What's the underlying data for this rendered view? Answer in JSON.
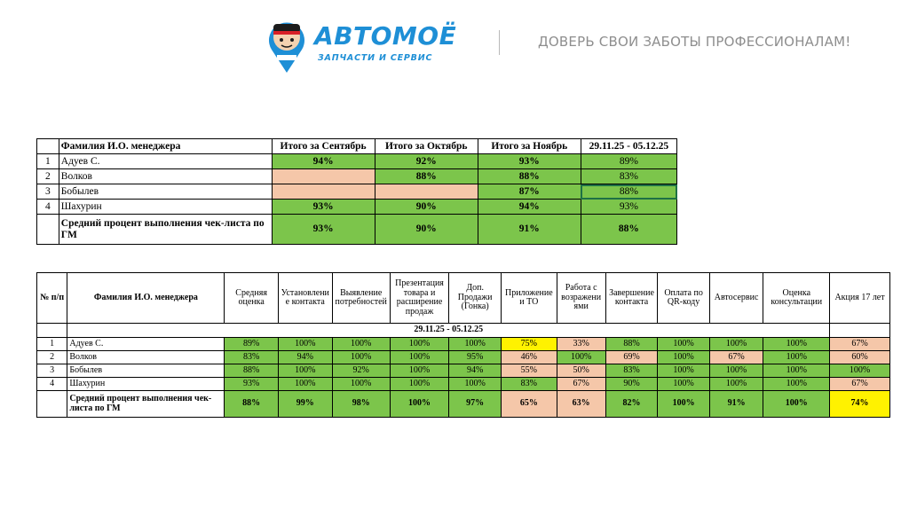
{
  "header": {
    "brand": "АВТОМОЁ",
    "brand_sub": "ЗАПЧАСТИ И СЕРВИС",
    "slogan": "ДОВЕРЬ СВОИ ЗАБОТЫ ПРОФЕССИОНАЛАМ!",
    "brand_color": "#1e8fd6"
  },
  "table1": {
    "columns": [
      "Фамилия И.О. менеджера",
      "Итого за Сентябрь",
      "Итого за Октябрь",
      "Итого за Ноябрь",
      "29.11.25 - 05.12.25"
    ],
    "rows": [
      {
        "n": "1",
        "name": "Адуев С.",
        "c1": "94%",
        "c2": "92%",
        "c3": "93%",
        "c4": "89%"
      },
      {
        "n": "2",
        "name": "Волков",
        "c1": "",
        "c2": "88%",
        "c3": "88%",
        "c4": "83%"
      },
      {
        "n": "3",
        "name": "Бобылев",
        "c1": "",
        "c2": "",
        "c3": "87%",
        "c4": "88%"
      },
      {
        "n": "4",
        "name": "Шахурин",
        "c1": "93%",
        "c2": "90%",
        "c3": "94%",
        "c4": "93%"
      }
    ],
    "avg": {
      "label": "Средний процент выполнения чек-листа по ГМ",
      "c1": "93%",
      "c2": "90%",
      "c3": "91%",
      "c4": "88%"
    }
  },
  "table2": {
    "columns": [
      "№ п/п",
      "Фамилия И.О. менеджера",
      "Средняя оценка",
      "Установлени е контакта",
      "Выявление потребностей",
      "Презентация товара и расширение продаж",
      "Доп. Продажи (Гонка)",
      "Приложение и ТО",
      "Работа с возражени ями",
      "Завершение контакта",
      "Оплата по QR-коду",
      "Автосервис",
      "Оценка консультации",
      "Акция 17 лет"
    ],
    "period": "29.11.25 - 05.12.25",
    "rows": [
      {
        "n": "1",
        "name": "Адуев С.",
        "v": [
          "89%",
          "100%",
          "100%",
          "100%",
          "100%",
          "75%",
          "33%",
          "88%",
          "100%",
          "100%",
          "100%",
          "67%"
        ]
      },
      {
        "n": "2",
        "name": "Волков",
        "v": [
          "83%",
          "94%",
          "100%",
          "100%",
          "95%",
          "46%",
          "100%",
          "69%",
          "100%",
          "67%",
          "100%",
          "60%"
        ]
      },
      {
        "n": "3",
        "name": "Бобылев",
        "v": [
          "88%",
          "100%",
          "92%",
          "100%",
          "94%",
          "55%",
          "50%",
          "83%",
          "100%",
          "100%",
          "100%",
          "100%"
        ]
      },
      {
        "n": "4",
        "name": "Шахурин",
        "v": [
          "93%",
          "100%",
          "100%",
          "100%",
          "100%",
          "83%",
          "67%",
          "90%",
          "100%",
          "100%",
          "100%",
          "67%"
        ]
      }
    ],
    "avg": {
      "label": "Средний процент выполнения чек-листа по ГМ",
      "v": [
        "88%",
        "99%",
        "98%",
        "100%",
        "97%",
        "65%",
        "63%",
        "82%",
        "100%",
        "91%",
        "100%",
        "74%"
      ]
    }
  },
  "colors": {
    "green": "#7cc54b",
    "peach": "#f5c7a9",
    "yellow": "#fff200"
  }
}
